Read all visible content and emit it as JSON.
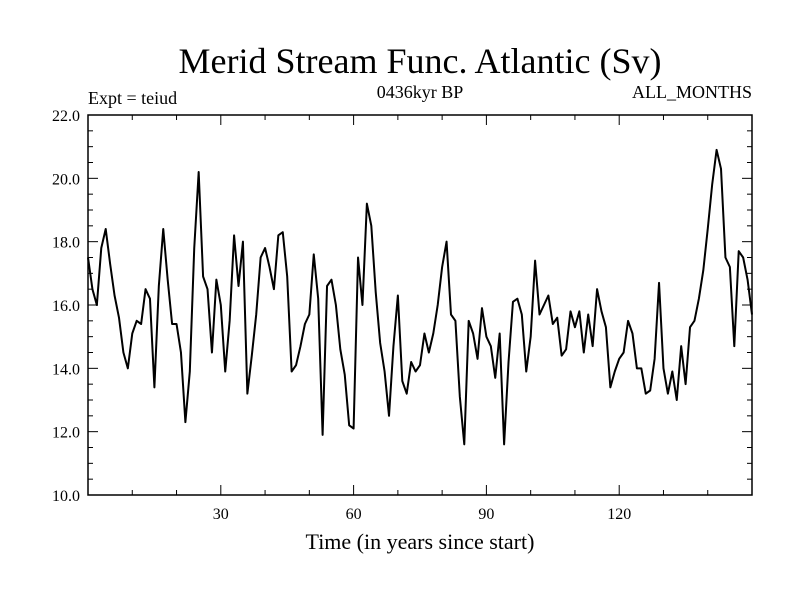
{
  "chart_data": {
    "type": "line",
    "title": "Merid Stream Func. Atlantic (Sv)",
    "subtitle_left": "Expt = teiud",
    "subtitle_center": "0436kyr BP",
    "subtitle_right": "ALL_MONTHS",
    "xlabel": "Time (in years since start)",
    "ylabel": "",
    "xlim": [
      0,
      150
    ],
    "ylim": [
      10.0,
      22.0
    ],
    "xticks": [
      30,
      60,
      90,
      120
    ],
    "xtick_labels": [
      "30",
      "60",
      "90",
      "120"
    ],
    "yticks": [
      10,
      12,
      14,
      16,
      18,
      20,
      22
    ],
    "ytick_labels": [
      "10.0",
      "12.0",
      "14.0",
      "16.0",
      "18.0",
      "20.0",
      "22.0"
    ],
    "grid": false,
    "legend": "none",
    "series": [
      {
        "color": "#000000",
        "x": [
          0,
          1,
          2,
          3,
          4,
          5,
          6,
          7,
          8,
          9,
          10,
          11,
          12,
          13,
          14,
          15,
          16,
          17,
          18,
          19,
          20,
          21,
          22,
          23,
          24,
          25,
          26,
          27,
          28,
          29,
          30,
          31,
          32,
          33,
          34,
          35,
          36,
          37,
          38,
          39,
          40,
          41,
          42,
          43,
          44,
          45,
          46,
          47,
          48,
          49,
          50,
          51,
          52,
          53,
          54,
          55,
          56,
          57,
          58,
          59,
          60,
          61,
          62,
          63,
          64,
          65,
          66,
          67,
          68,
          69,
          70,
          71,
          72,
          73,
          74,
          75,
          76,
          77,
          78,
          79,
          80,
          81,
          82,
          83,
          84,
          85,
          86,
          87,
          88,
          89,
          90,
          91,
          92,
          93,
          94,
          95,
          96,
          97,
          98,
          99,
          100,
          101,
          102,
          103,
          104,
          105,
          106,
          107,
          108,
          109,
          110,
          111,
          112,
          113,
          114,
          115,
          116,
          117,
          118,
          119,
          120,
          121,
          122,
          123,
          124,
          125,
          126,
          127,
          128,
          129,
          130,
          131,
          132,
          133,
          134,
          135,
          136,
          137,
          138,
          139,
          140,
          141,
          142,
          143,
          144,
          145,
          146,
          147,
          148,
          149,
          150
        ],
        "values": [
          17.5,
          16.5,
          16.0,
          17.8,
          18.4,
          17.3,
          16.3,
          15.6,
          14.5,
          14.0,
          15.1,
          15.5,
          15.4,
          16.5,
          16.2,
          13.4,
          16.6,
          18.4,
          16.8,
          15.4,
          15.4,
          14.5,
          12.3,
          13.9,
          17.8,
          20.2,
          16.9,
          16.5,
          14.5,
          16.8,
          16.0,
          13.9,
          15.5,
          18.2,
          16.6,
          18.0,
          13.2,
          14.4,
          15.7,
          17.5,
          17.8,
          17.2,
          16.5,
          18.2,
          18.3,
          16.9,
          13.9,
          14.1,
          14.7,
          15.4,
          15.7,
          17.6,
          16.2,
          11.9,
          16.6,
          16.8,
          16.0,
          14.6,
          13.8,
          12.2,
          12.1,
          17.5,
          16.0,
          19.2,
          18.5,
          16.4,
          14.8,
          13.9,
          12.5,
          14.7,
          16.3,
          13.6,
          13.2,
          14.2,
          13.9,
          14.1,
          15.1,
          14.5,
          15.1,
          16.0,
          17.2,
          18.0,
          15.7,
          15.5,
          13.1,
          11.6,
          15.5,
          15.1,
          14.3,
          15.9,
          15.0,
          14.7,
          13.7,
          15.1,
          11.6,
          14.2,
          16.1,
          16.2,
          15.7,
          13.9,
          15.0,
          17.4,
          15.7,
          16.0,
          16.3,
          15.4,
          15.6,
          14.4,
          14.6,
          15.8,
          15.3,
          15.8,
          14.5,
          15.7,
          14.7,
          16.5,
          15.8,
          15.3,
          13.4,
          13.9,
          14.3,
          14.5,
          15.5,
          15.1,
          14.0,
          14.0,
          13.2,
          13.3,
          14.3,
          16.7,
          14.0,
          13.2,
          13.9,
          13.0,
          14.7,
          13.5,
          15.3,
          15.5,
          16.2,
          17.1,
          18.4,
          19.8,
          20.9,
          20.3,
          17.5,
          17.2,
          14.7,
          17.7,
          17.5,
          16.8,
          15.7
        ]
      }
    ]
  }
}
